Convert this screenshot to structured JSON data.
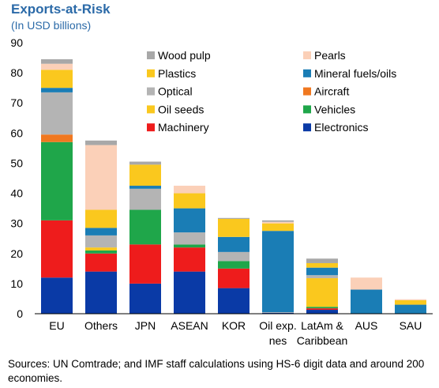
{
  "header": {
    "title": "Exports-at-Risk",
    "subtitle": "(In USD billions)"
  },
  "footer": {
    "source": "Sources: UN Comtrade; and IMF staff calculations using HS-6 digit data and around 200 economies."
  },
  "chart_data": {
    "type": "bar",
    "stacked": true,
    "ylim": [
      0,
      90
    ],
    "yticks": [
      0,
      10,
      20,
      30,
      40,
      50,
      60,
      70,
      80,
      90
    ],
    "grid": false,
    "legend_position": "top-right",
    "categories": [
      [
        "EU"
      ],
      [
        "Others"
      ],
      [
        "JPN"
      ],
      [
        "ASEAN"
      ],
      [
        "KOR"
      ],
      [
        "Oil exp.",
        "nes"
      ],
      [
        "LatAm &",
        "Caribbean"
      ],
      [
        "AUS"
      ],
      [
        "SAU"
      ]
    ],
    "series": [
      {
        "name": "Electronics",
        "color": "#0a3aa6",
        "values": [
          12,
          14,
          10,
          14,
          8.5,
          0.3,
          1.3,
          0,
          0
        ]
      },
      {
        "name": "Machinery",
        "color": "#ee1c1c",
        "values": [
          19,
          6,
          13,
          8,
          6.5,
          0,
          0.5,
          0,
          0
        ]
      },
      {
        "name": "Vehicles",
        "color": "#1fa64a",
        "values": [
          26,
          1,
          11.5,
          1,
          2.5,
          0,
          0.5,
          0,
          0
        ]
      },
      {
        "name": "Oil seeds",
        "color": "#fac81e",
        "values": [
          0,
          1,
          0,
          0,
          0,
          0,
          9.5,
          0,
          0
        ]
      },
      {
        "name": "Aircraft",
        "color": "#f07820",
        "values": [
          2.5,
          0,
          0,
          0,
          0,
          0,
          0,
          0,
          0
        ]
      },
      {
        "name": "Optical",
        "color": "#b4b4b4",
        "values": [
          14,
          4,
          7,
          4,
          3,
          0.2,
          1,
          0,
          0
        ]
      },
      {
        "name": "Mineral fuels/oils",
        "color": "#1a7db5",
        "values": [
          1.5,
          2.5,
          1,
          8,
          5,
          27,
          2.5,
          8,
          3
        ]
      },
      {
        "name": "Plastics",
        "color": "#fac81e",
        "values": [
          6,
          6,
          7,
          5,
          6,
          2.5,
          1.5,
          0,
          1.5
        ]
      },
      {
        "name": "Pearls",
        "color": "#fbd0b8",
        "values": [
          2,
          21.5,
          0,
          2.5,
          0,
          0.5,
          0,
          4,
          0.3
        ]
      },
      {
        "name": "Wood pulp",
        "color": "#a8a8a8",
        "values": [
          1.5,
          1.5,
          1,
          0,
          0.3,
          0.5,
          1.5,
          0,
          0
        ]
      }
    ],
    "legend_order": [
      "Wood pulp",
      "Pearls",
      "Plastics",
      "Mineral fuels/oils",
      "Optical",
      "Aircraft",
      "Oil seeds",
      "Vehicles",
      "Machinery",
      "Electronics"
    ]
  }
}
